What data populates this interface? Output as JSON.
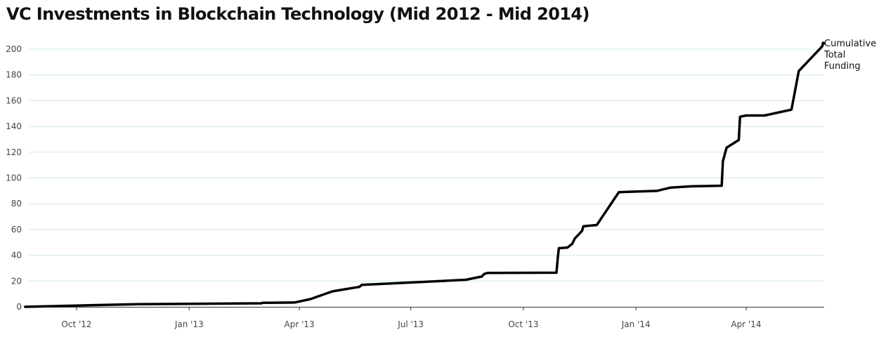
{
  "chart_data": {
    "type": "line",
    "title": "VC Investments in Blockchain Technology (Mid 2012 - Mid 2014)",
    "xlabel": "",
    "ylabel": "",
    "ylim": [
      0,
      200
    ],
    "yticks": [
      0,
      20,
      40,
      60,
      80,
      100,
      120,
      140,
      160,
      180,
      200
    ],
    "xlim": [
      "2012-08-15",
      "2014-06-25"
    ],
    "xticks": [
      {
        "date": "2012-10-01",
        "label": "Oct '12"
      },
      {
        "date": "2013-01-01",
        "label": "Jan '13"
      },
      {
        "date": "2013-04-01",
        "label": "Apr '13"
      },
      {
        "date": "2013-07-01",
        "label": "Jul '13"
      },
      {
        "date": "2013-10-01",
        "label": "Oct '13"
      },
      {
        "date": "2014-01-01",
        "label": "Jan '14"
      },
      {
        "date": "2014-04-01",
        "label": "Apr '14"
      }
    ],
    "grid": true,
    "line_color": "#000000",
    "grid_color": "#cfe8ea",
    "series": [
      {
        "name": "Cumulative Total Funding",
        "points": [
          {
            "x": "2012-08-20",
            "y": 0
          },
          {
            "x": "2012-10-01",
            "y": 1
          },
          {
            "x": "2012-11-20",
            "y": 2
          },
          {
            "x": "2013-03-01",
            "y": 2.7
          },
          {
            "x": "2013-03-02",
            "y": 3.1
          },
          {
            "x": "2013-03-28",
            "y": 3.3
          },
          {
            "x": "2013-04-10",
            "y": 6
          },
          {
            "x": "2013-04-28",
            "y": 12
          },
          {
            "x": "2013-05-20",
            "y": 15.5
          },
          {
            "x": "2013-05-22",
            "y": 17
          },
          {
            "x": "2013-08-15",
            "y": 21
          },
          {
            "x": "2013-08-28",
            "y": 23.5
          },
          {
            "x": "2013-08-30",
            "y": 25.5
          },
          {
            "x": "2013-09-02",
            "y": 26.3
          },
          {
            "x": "2013-10-28",
            "y": 26.5
          },
          {
            "x": "2013-10-29",
            "y": 37
          },
          {
            "x": "2013-10-30",
            "y": 45.5
          },
          {
            "x": "2013-11-06",
            "y": 46
          },
          {
            "x": "2013-11-10",
            "y": 49
          },
          {
            "x": "2013-11-12",
            "y": 53
          },
          {
            "x": "2013-11-16",
            "y": 57
          },
          {
            "x": "2013-11-18",
            "y": 59
          },
          {
            "x": "2013-11-19",
            "y": 62.5
          },
          {
            "x": "2013-11-30",
            "y": 63.5
          },
          {
            "x": "2013-12-18",
            "y": 89
          },
          {
            "x": "2014-01-18",
            "y": 90
          },
          {
            "x": "2014-01-29",
            "y": 92.5
          },
          {
            "x": "2014-02-15",
            "y": 93.5
          },
          {
            "x": "2014-03-12",
            "y": 94
          },
          {
            "x": "2014-03-13",
            "y": 113
          },
          {
            "x": "2014-03-16",
            "y": 123.5
          },
          {
            "x": "2014-03-26",
            "y": 129.5
          },
          {
            "x": "2014-03-27",
            "y": 147.5
          },
          {
            "x": "2014-04-01",
            "y": 148.5
          },
          {
            "x": "2014-04-16",
            "y": 148.5
          },
          {
            "x": "2014-05-08",
            "y": 153
          },
          {
            "x": "2014-05-14",
            "y": 183
          },
          {
            "x": "2014-06-02",
            "y": 202
          },
          {
            "x": "2014-06-03",
            "y": 204.5
          }
        ]
      }
    ]
  }
}
